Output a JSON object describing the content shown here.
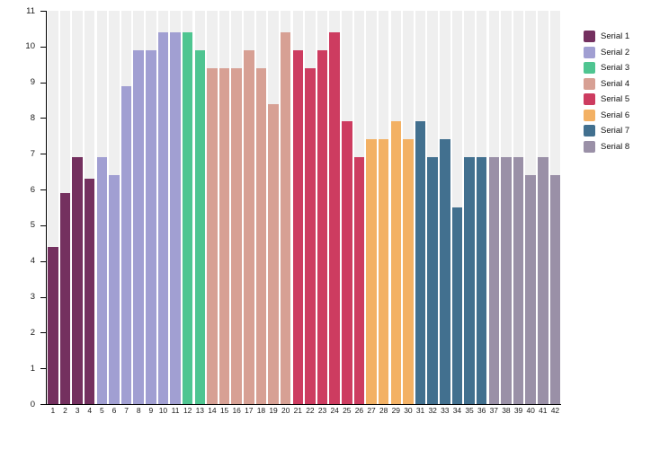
{
  "chart_data": {
    "type": "bar",
    "title": "",
    "xlabel": "",
    "ylabel": "",
    "ylim": [
      0,
      11
    ],
    "yticks": [
      0,
      1,
      2,
      3,
      4,
      5,
      6,
      7,
      8,
      9,
      10,
      11
    ],
    "grid": false,
    "legend_position": "right",
    "background_bands": {
      "enabled": true,
      "color": "#efefef"
    },
    "axis_color": "#000000",
    "label_color": "#1a1a1a",
    "categories": [
      "1",
      "2",
      "3",
      "4",
      "5",
      "6",
      "7",
      "8",
      "9",
      "10",
      "11",
      "12",
      "13",
      "14",
      "15",
      "16",
      "17",
      "18",
      "19",
      "20",
      "21",
      "22",
      "23",
      "24",
      "25",
      "26",
      "27",
      "28",
      "29",
      "30",
      "31",
      "32",
      "33",
      "34",
      "35",
      "36",
      "37",
      "38",
      "39",
      "40",
      "41",
      "42"
    ],
    "series": [
      {
        "name": "Serial 1",
        "color": "#74305F",
        "categories": [
          "1",
          "2",
          "3",
          "4"
        ],
        "values": [
          4.4,
          5.9,
          6.9,
          6.3
        ]
      },
      {
        "name": "Serial 2",
        "color": "#A19FD2",
        "categories": [
          "5",
          "6",
          "7",
          "8",
          "9",
          "10",
          "11"
        ],
        "values": [
          6.9,
          6.4,
          8.9,
          9.9,
          9.9,
          10.4,
          10.4
        ]
      },
      {
        "name": "Serial 3",
        "color": "#4FC591",
        "categories": [
          "12",
          "13"
        ],
        "values": [
          10.4,
          9.9
        ]
      },
      {
        "name": "Serial 4",
        "color": "#D7A094",
        "categories": [
          "14",
          "15",
          "16",
          "17",
          "18",
          "19",
          "20"
        ],
        "values": [
          9.4,
          9.4,
          9.4,
          9.9,
          9.4,
          8.4,
          10.4
        ]
      },
      {
        "name": "Serial 5",
        "color": "#CD3C60",
        "categories": [
          "21",
          "22",
          "23",
          "24",
          "25",
          "26"
        ],
        "values": [
          9.9,
          9.4,
          9.9,
          10.4,
          7.9,
          6.9
        ]
      },
      {
        "name": "Serial 6",
        "color": "#F3B164",
        "categories": [
          "27",
          "28",
          "29",
          "30"
        ],
        "values": [
          7.4,
          7.4,
          7.9,
          7.4
        ]
      },
      {
        "name": "Serial 7",
        "color": "#42708F",
        "categories": [
          "31",
          "32",
          "33",
          "34",
          "35",
          "36"
        ],
        "values": [
          7.9,
          6.9,
          7.4,
          5.5,
          6.9,
          6.9
        ]
      },
      {
        "name": "Serial 8",
        "color": "#9A90A7",
        "categories": [
          "37",
          "38",
          "39",
          "40",
          "41",
          "42"
        ],
        "values": [
          6.9,
          6.9,
          6.9,
          6.4,
          6.9,
          6.4
        ]
      }
    ]
  }
}
